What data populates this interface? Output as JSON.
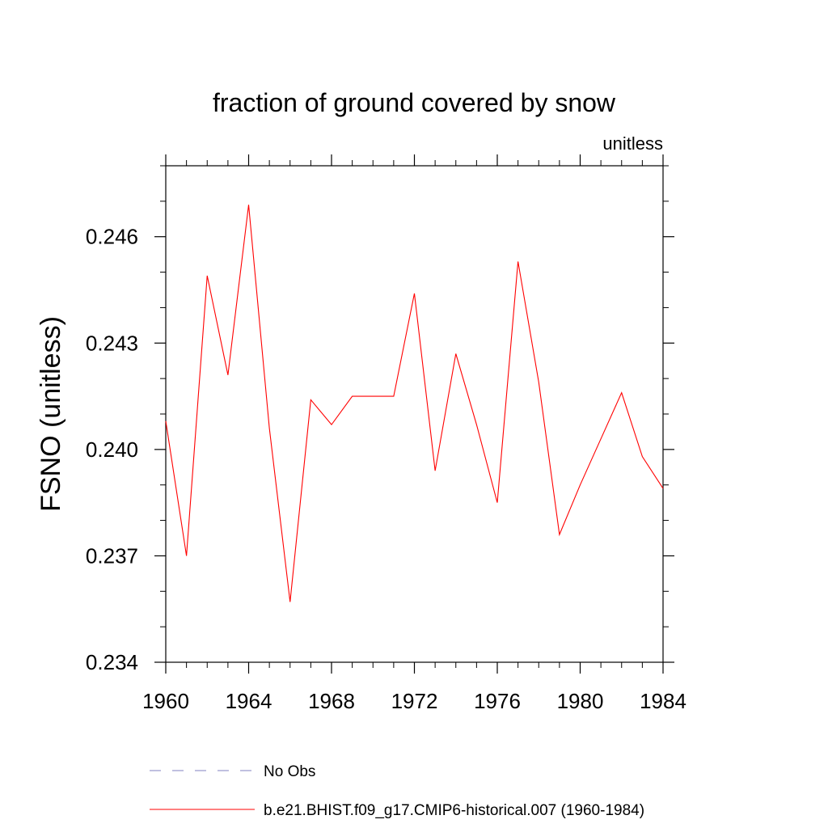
{
  "chart_data": {
    "type": "line",
    "title": "fraction of ground covered by snow",
    "units_label": "unitless",
    "ylabel": "FSNO  (unitless)",
    "xlabel": "",
    "xlim": [
      1960,
      1984
    ],
    "ylim": [
      0.234,
      0.248
    ],
    "x_ticks": [
      "1960",
      "1964",
      "1968",
      "1972",
      "1976",
      "1980",
      "1984"
    ],
    "y_ticks": [
      "0.234",
      "0.237",
      "0.240",
      "0.243",
      "0.246"
    ],
    "grid": false,
    "legend_position": "bottom",
    "series": [
      {
        "name": "No Obs",
        "color": "#8080c0",
        "style": "dashed",
        "x": [],
        "values": []
      },
      {
        "name": "b.e21.BHIST.f09_g17.CMIP6-historical.007 (1960-1984)",
        "color": "#ff0000",
        "style": "solid",
        "x": [
          1960,
          1961,
          1962,
          1963,
          1964,
          1965,
          1966,
          1967,
          1968,
          1969,
          1970,
          1971,
          1972,
          1973,
          1974,
          1975,
          1976,
          1977,
          1978,
          1979,
          1980,
          1981,
          1982,
          1983,
          1984
        ],
        "values": [
          0.2408,
          0.237,
          0.2449,
          0.2421,
          0.2469,
          0.2406,
          0.2357,
          0.2414,
          0.2407,
          0.2415,
          0.2415,
          0.2415,
          0.2444,
          0.2394,
          0.2427,
          0.2407,
          0.2385,
          0.2453,
          0.2419,
          0.2376,
          0.239,
          0.2403,
          0.2416,
          0.2398,
          0.2389
        ]
      }
    ]
  }
}
